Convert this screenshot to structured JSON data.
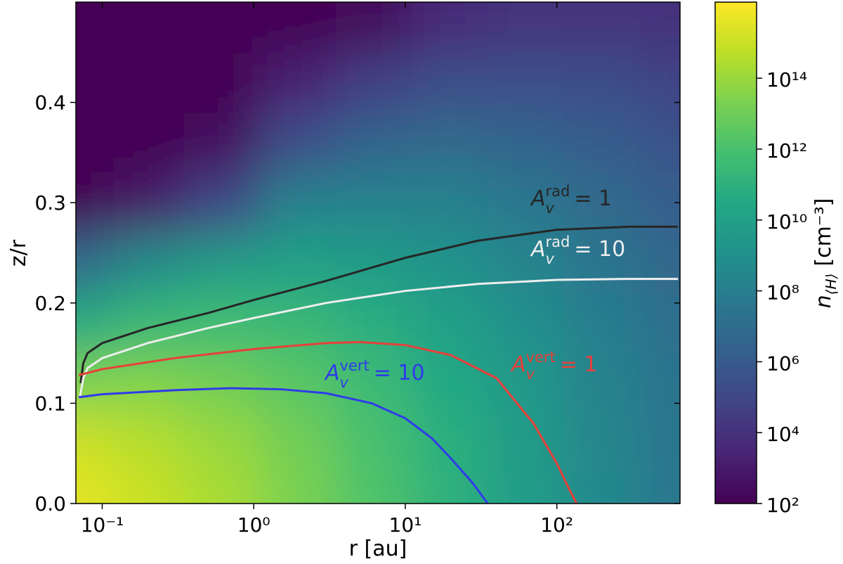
{
  "chart_data": {
    "type": "heatmap",
    "xlabel": "r [au]",
    "ylabel": "z/r",
    "colorbar_label": {
      "symbol": "n",
      "sub": "⟨H⟩",
      "unit": "[cm⁻³]"
    },
    "xscale": "log",
    "xlim": [
      0.067,
      650
    ],
    "ylim": [
      0,
      0.5
    ],
    "xticks": [
      {
        "value": 0.1,
        "label": "10⁻¹"
      },
      {
        "value": 1,
        "label": "10⁰"
      },
      {
        "value": 10,
        "label": "10¹"
      },
      {
        "value": 100,
        "label": "10²"
      }
    ],
    "yticks": [
      {
        "value": 0,
        "label": "0.0"
      },
      0.1,
      0.2,
      0.3,
      0.4
    ],
    "colormap": "viridis",
    "cscale": "log",
    "clim": [
      100,
      1.4e+16
    ],
    "cticks": [
      {
        "value": 100,
        "label": "10²"
      },
      {
        "value": 10000,
        "label": "10⁴"
      },
      {
        "value": 1000000,
        "label": "10⁶"
      },
      {
        "value": 100000000,
        "label": "10⁸"
      },
      {
        "value": 10000000000,
        "label": "10¹⁰"
      },
      {
        "value": 1000000000000,
        "label": "10¹²"
      },
      {
        "value": 100000000000000,
        "label": "10¹⁴"
      }
    ],
    "grid_x": [
      0.07,
      0.2,
      0.6,
      2,
      6,
      20,
      60,
      200,
      630
    ],
    "grid_y": [
      0,
      0.06,
      0.12,
      0.18,
      0.24,
      0.3,
      0.36,
      0.42,
      0.48
    ],
    "z": [
      [
        4000000000000000.0,
        1000000000000000.0,
        200000000000000.0,
        20000000000000.0,
        1600000000000.0,
        100000000000.0,
        6000000000.0,
        400000000.0,
        40000000.0
      ],
      [
        1300000000000000.0,
        400000000000000.0,
        100000000000000.0,
        13000000000000.0,
        1000000000000.0,
        80000000000.0,
        5000000000.0,
        300000000.0,
        30000000.0
      ],
      [
        25000000000000.0,
        30000000000000.0,
        13000000000000.0,
        3000000000000.0,
        400000000000.0,
        30000000000.0,
        3000000000.0,
        200000000.0,
        25000000.0
      ],
      [
        50000000000.0,
        300000000000.0,
        500000000000.0,
        300000000000.0,
        60000000000.0,
        10000000000.0,
        1000000000.0,
        100000000.0,
        13000000.0
      ],
      [
        8000000.0,
        600000000.0,
        5000000000.0,
        10000000000.0,
        5000000000.0,
        1600000000.0,
        250000000.0,
        30000000.0,
        5000000.0
      ],
      [
        100,
        1000,
        100000.0,
        160000000.0,
        200000000.0,
        160000000.0,
        40000000.0,
        8000000.0,
        1600000.0
      ],
      [
        100,
        100,
        300,
        300000.0,
        4000000.0,
        8000000.0,
        4000000.0,
        1300000.0,
        400000.0
      ],
      [
        100,
        100,
        100,
        2000,
        40000.0,
        250000.0,
        300000.0,
        200000.0,
        80000.0
      ],
      [
        100,
        100,
        100,
        100,
        200,
        5000,
        13000.0,
        16000.0,
        10000.0
      ]
    ],
    "series": [
      {
        "label": {
          "symbol": "A",
          "sub": "v",
          "sup": "rad",
          "text": "= 1"
        },
        "color": "#262626",
        "x": [
          0.072,
          0.075,
          0.08,
          0.1,
          0.2,
          0.5,
          1,
          3,
          10,
          30,
          100,
          300,
          630
        ],
        "y": [
          0.12,
          0.14,
          0.15,
          0.16,
          0.175,
          0.19,
          0.203,
          0.222,
          0.245,
          0.262,
          0.273,
          0.276,
          0.276
        ]
      },
      {
        "label": {
          "symbol": "A",
          "sub": "v",
          "sup": "rad",
          "text": "= 10"
        },
        "color": "#eeeeee",
        "x": [
          0.071,
          0.075,
          0.08,
          0.1,
          0.2,
          0.5,
          1,
          3,
          10,
          30,
          100,
          300,
          630
        ],
        "y": [
          0.105,
          0.125,
          0.135,
          0.145,
          0.16,
          0.175,
          0.185,
          0.2,
          0.212,
          0.219,
          0.223,
          0.224,
          0.224
        ]
      },
      {
        "label": {
          "symbol": "A",
          "sub": "v",
          "sup": "vert",
          "text": "= 10"
        },
        "color": "#2f3bea",
        "x": [
          0.07,
          0.1,
          0.3,
          0.7,
          1.5,
          3,
          6,
          10,
          15,
          20,
          28,
          35
        ],
        "y": [
          0.106,
          0.109,
          0.113,
          0.115,
          0.114,
          0.11,
          0.1,
          0.085,
          0.065,
          0.045,
          0.02,
          0
        ]
      },
      {
        "label": {
          "symbol": "A",
          "sub": "v",
          "sup": "vert",
          "text": "= 1"
        },
        "color": "#e8403a",
        "x": [
          0.07,
          0.1,
          0.3,
          1,
          3,
          5,
          10,
          20,
          40,
          70,
          100,
          120,
          135
        ],
        "y": [
          0.128,
          0.134,
          0.145,
          0.154,
          0.16,
          0.161,
          0.158,
          0.148,
          0.125,
          0.08,
          0.04,
          0.015,
          0
        ]
      }
    ]
  }
}
